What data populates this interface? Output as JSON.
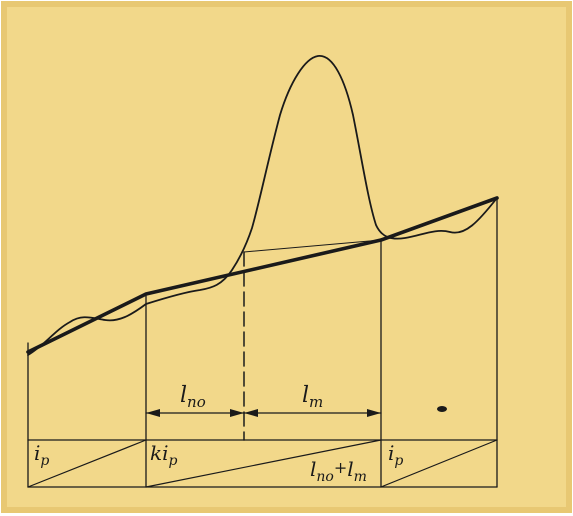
{
  "colors": {
    "paper": "#f2d88a",
    "paper_shadow": "#e8c873",
    "ink": "#1a1a1a"
  },
  "labels": {
    "segment_lpo": "l",
    "segment_lpo_sub": "по",
    "segment_lm": "l",
    "segment_lm_sub": "m",
    "grade_ip_left": "i",
    "grade_ip_left_sub": "p",
    "grade_kip": "ki",
    "grade_kip_sub": "p",
    "sum_lpo": "l",
    "sum_lpo_sub": "по",
    "sum_plus": "+",
    "sum_lm": "l",
    "sum_lm_sub": "m",
    "grade_ip_right": "i",
    "grade_ip_right_sub": "p"
  }
}
